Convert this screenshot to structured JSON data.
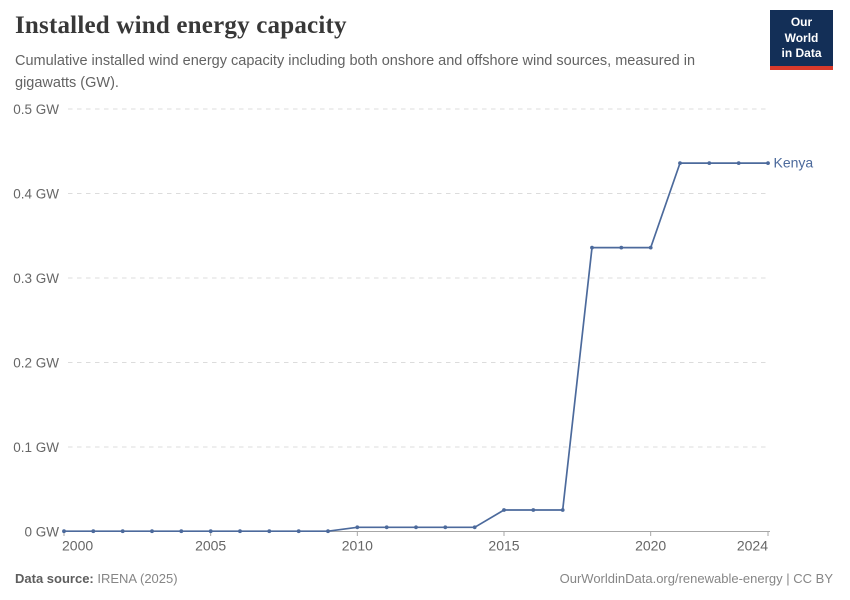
{
  "header": {
    "title": "Installed wind energy capacity",
    "subtitle": "Cumulative installed wind energy capacity including both onshore and offshore wind sources, measured in gigawatts (GW).",
    "subtitle_lines": [
      "Cumulative installed wind energy capacity including both onshore and offshore wind sources, measured in",
      "gigawatts (GW)."
    ],
    "logo": {
      "line1": "Our World",
      "line2": "in Data"
    }
  },
  "chart_data": {
    "type": "line",
    "title": "Installed wind energy capacity",
    "unit": "GW",
    "x": [
      2000,
      2001,
      2002,
      2003,
      2004,
      2005,
      2006,
      2007,
      2008,
      2009,
      2010,
      2011,
      2012,
      2013,
      2014,
      2015,
      2016,
      2017,
      2018,
      2019,
      2020,
      2021,
      2022,
      2023,
      2024
    ],
    "series": [
      {
        "name": "Kenya",
        "color": "#4c6a9c",
        "values": [
          0.0004,
          0.0004,
          0.0004,
          0.0004,
          0.0004,
          0.0004,
          0.0004,
          0.0004,
          0.0004,
          0.0004,
          0.005,
          0.005,
          0.005,
          0.005,
          0.005,
          0.0255,
          0.0255,
          0.0255,
          0.336,
          0.336,
          0.336,
          0.436,
          0.436,
          0.436,
          0.436
        ]
      }
    ],
    "xlim": [
      2000,
      2024
    ],
    "ylim": [
      0,
      0.5
    ],
    "x_ticks": [
      {
        "value": 2000,
        "label": "2000"
      },
      {
        "value": 2005,
        "label": "2005"
      },
      {
        "value": 2010,
        "label": "2010"
      },
      {
        "value": 2015,
        "label": "2015"
      },
      {
        "value": 2020,
        "label": "2020"
      },
      {
        "value": 2024,
        "label": "2024"
      }
    ],
    "y_ticks": [
      {
        "value": 0,
        "label": "0 GW"
      },
      {
        "value": 0.1,
        "label": "0.1 GW"
      },
      {
        "value": 0.2,
        "label": "0.2 GW"
      },
      {
        "value": 0.3,
        "label": "0.3 GW"
      },
      {
        "value": 0.4,
        "label": "0.4 GW"
      },
      {
        "value": 0.5,
        "label": "0.5 GW"
      }
    ],
    "grid": "horizontal-dashed",
    "legend_position": "line-end"
  },
  "footer": {
    "datasource_label": "Data source:",
    "datasource_value": "IRENA (2025)",
    "link": "OurWorldinData.org/renewable-energy | CC BY"
  },
  "colors": {
    "line": "#4c6a9c",
    "grid": "#dcdcdc",
    "axis": "#a7a7a7",
    "tick_label": "#666666",
    "title": "#383838",
    "subtitle": "#636363",
    "logo_bg": "#132f57",
    "logo_stripe": "#d93a2b"
  }
}
